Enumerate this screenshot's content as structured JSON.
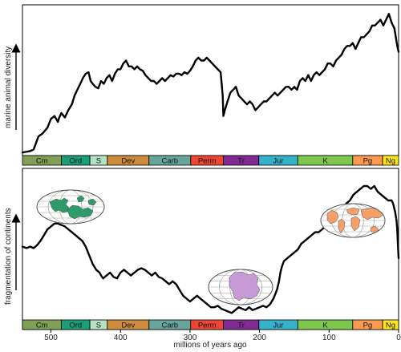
{
  "chart_data": [
    {
      "type": "line",
      "ylabel": "marine animal diversity",
      "x_reversed": true,
      "xlim": [
        541,
        0
      ],
      "series": [
        {
          "x": [
            541,
            530,
            525,
            518,
            512,
            505,
            500,
            495,
            490,
            488,
            485,
            480,
            475,
            470,
            466,
            462,
            458,
            454,
            450,
            446,
            443,
            440,
            436,
            432,
            428,
            424,
            420,
            416,
            412,
            408,
            404,
            400,
            396,
            392,
            388,
            384,
            380,
            376,
            372,
            368,
            364,
            360,
            356,
            352,
            348,
            344,
            340,
            336,
            332,
            328,
            324,
            320,
            316,
            312,
            308,
            304,
            300,
            296,
            292,
            288,
            284,
            280,
            276,
            272,
            268,
            264,
            260,
            256,
            253,
            252,
            250,
            246,
            242,
            238,
            234,
            230,
            226,
            222,
            218,
            214,
            210,
            206,
            202,
            198,
            194,
            190,
            186,
            182,
            178,
            174,
            170,
            166,
            162,
            158,
            154,
            150,
            146,
            142,
            138,
            134,
            130,
            126,
            122,
            118,
            114,
            110,
            106,
            102,
            98,
            94,
            90,
            86,
            82,
            78,
            74,
            70,
            66,
            62,
            58,
            54,
            50,
            46,
            42,
            38,
            34,
            30,
            26,
            22,
            18,
            14,
            10,
            6,
            2,
            0
          ],
          "y": [
            1,
            2,
            3,
            12,
            14,
            18,
            24,
            26,
            22,
            25,
            28,
            25,
            30,
            34,
            40,
            44,
            48,
            52,
            55,
            56,
            50,
            48,
            46,
            45,
            50,
            48,
            52,
            54,
            50,
            55,
            58,
            58,
            62,
            64,
            60,
            60,
            58,
            60,
            58,
            57,
            54,
            52,
            50,
            50,
            48,
            50,
            52,
            50,
            52,
            54,
            53,
            55,
            55,
            54,
            56,
            55,
            57,
            60,
            64,
            66,
            64,
            64,
            66,
            64,
            62,
            60,
            58,
            56,
            40,
            26,
            30,
            36,
            42,
            44,
            46,
            40,
            38,
            36,
            34,
            36,
            34,
            30,
            32,
            34,
            36,
            36,
            38,
            40,
            42,
            40,
            42,
            44,
            46,
            46,
            44,
            46,
            44,
            50,
            52,
            50,
            54,
            50,
            54,
            56,
            54,
            56,
            58,
            62,
            62,
            60,
            64,
            66,
            68,
            72,
            74,
            74,
            76,
            72,
            76,
            80,
            80,
            82,
            84,
            88,
            88,
            90,
            92,
            88,
            92,
            96,
            90,
            86,
            74,
            70
          ]
        }
      ]
    },
    {
      "type": "line",
      "xlabel": "millions of years ago",
      "ylabel": "fragmentation of continents",
      "x_reversed": true,
      "xlim": [
        541,
        0
      ],
      "xticks": [
        500,
        400,
        300,
        200,
        100,
        0
      ],
      "series": [
        {
          "x": [
            541,
            535,
            530,
            525,
            520,
            515,
            510,
            505,
            500,
            495,
            490,
            485,
            480,
            475,
            470,
            465,
            460,
            455,
            450,
            445,
            440,
            435,
            430,
            428,
            425,
            420,
            415,
            410,
            405,
            400,
            395,
            390,
            385,
            380,
            375,
            370,
            365,
            360,
            355,
            350,
            345,
            340,
            335,
            330,
            325,
            320,
            315,
            310,
            305,
            300,
            295,
            290,
            285,
            280,
            275,
            270,
            265,
            260,
            255,
            250,
            245,
            240,
            235,
            230,
            225,
            220,
            215,
            210,
            205,
            200,
            195,
            190,
            185,
            180,
            175,
            172,
            170,
            168,
            165,
            160,
            155,
            150,
            145,
            140,
            135,
            130,
            125,
            120,
            115,
            110,
            105,
            100,
            95,
            90,
            85,
            80,
            75,
            70,
            65,
            60,
            55,
            50,
            45,
            40,
            35,
            30,
            25,
            20,
            15,
            10,
            8,
            5,
            3,
            2,
            1,
            0
          ],
          "y": [
            48,
            47,
            48,
            47,
            49,
            52,
            56,
            60,
            62,
            64,
            64,
            63,
            62,
            60,
            58,
            56,
            54,
            52,
            48,
            42,
            36,
            32,
            30,
            28,
            26,
            28,
            30,
            27,
            26,
            30,
            32,
            30,
            28,
            30,
            32,
            33,
            32,
            30,
            28,
            30,
            27,
            26,
            24,
            22,
            24,
            22,
            18,
            14,
            12,
            10,
            12,
            14,
            12,
            10,
            8,
            6,
            6,
            7,
            5,
            4,
            3,
            2,
            4,
            6,
            5,
            4,
            6,
            4,
            5,
            6,
            7,
            6,
            8,
            12,
            18,
            24,
            30,
            34,
            38,
            40,
            42,
            44,
            46,
            50,
            52,
            54,
            56,
            58,
            58,
            60,
            62,
            64,
            66,
            68,
            70,
            74,
            78,
            80,
            84,
            86,
            88,
            90,
            90,
            88,
            90,
            86,
            84,
            82,
            80,
            80,
            78,
            72,
            66,
            60,
            50,
            40
          ]
        }
      ]
    }
  ],
  "periods": [
    {
      "name": "Cm",
      "start": 541,
      "end": 485,
      "color": "#7fa056"
    },
    {
      "name": "Ord",
      "start": 485,
      "end": 444,
      "color": "#1a9f78"
    },
    {
      "name": "S",
      "start": 444,
      "end": 419,
      "color": "#b3e1c2"
    },
    {
      "name": "Dev",
      "start": 419,
      "end": 359,
      "color": "#cc8c3b"
    },
    {
      "name": "Carb",
      "start": 359,
      "end": 299,
      "color": "#67a59a"
    },
    {
      "name": "Perm",
      "start": 299,
      "end": 252,
      "color": "#ef4533"
    },
    {
      "name": "Tr",
      "start": 252,
      "end": 201,
      "color": "#812b92"
    },
    {
      "name": "Jur",
      "start": 201,
      "end": 145,
      "color": "#34b2c9"
    },
    {
      "name": "K",
      "start": 145,
      "end": 66,
      "color": "#7fc64e"
    },
    {
      "name": "Pg",
      "start": 66,
      "end": 23,
      "color": "#fd9a52"
    },
    {
      "name": "Ng",
      "start": 23,
      "end": 0,
      "color": "#ffe619"
    }
  ],
  "globes": [
    {
      "name": "ordovician-globe",
      "land_color": "#2f9a6a",
      "ocean_color": "#ffffff"
    },
    {
      "name": "triassic-globe",
      "land_color": "#c79ad6",
      "ocean_color": "#ffffff"
    },
    {
      "name": "cretaceous-globe",
      "land_color": "#f4a06a",
      "ocean_color": "#ffffff"
    }
  ],
  "colors": {
    "line": "#000000",
    "frame": "#000000"
  }
}
